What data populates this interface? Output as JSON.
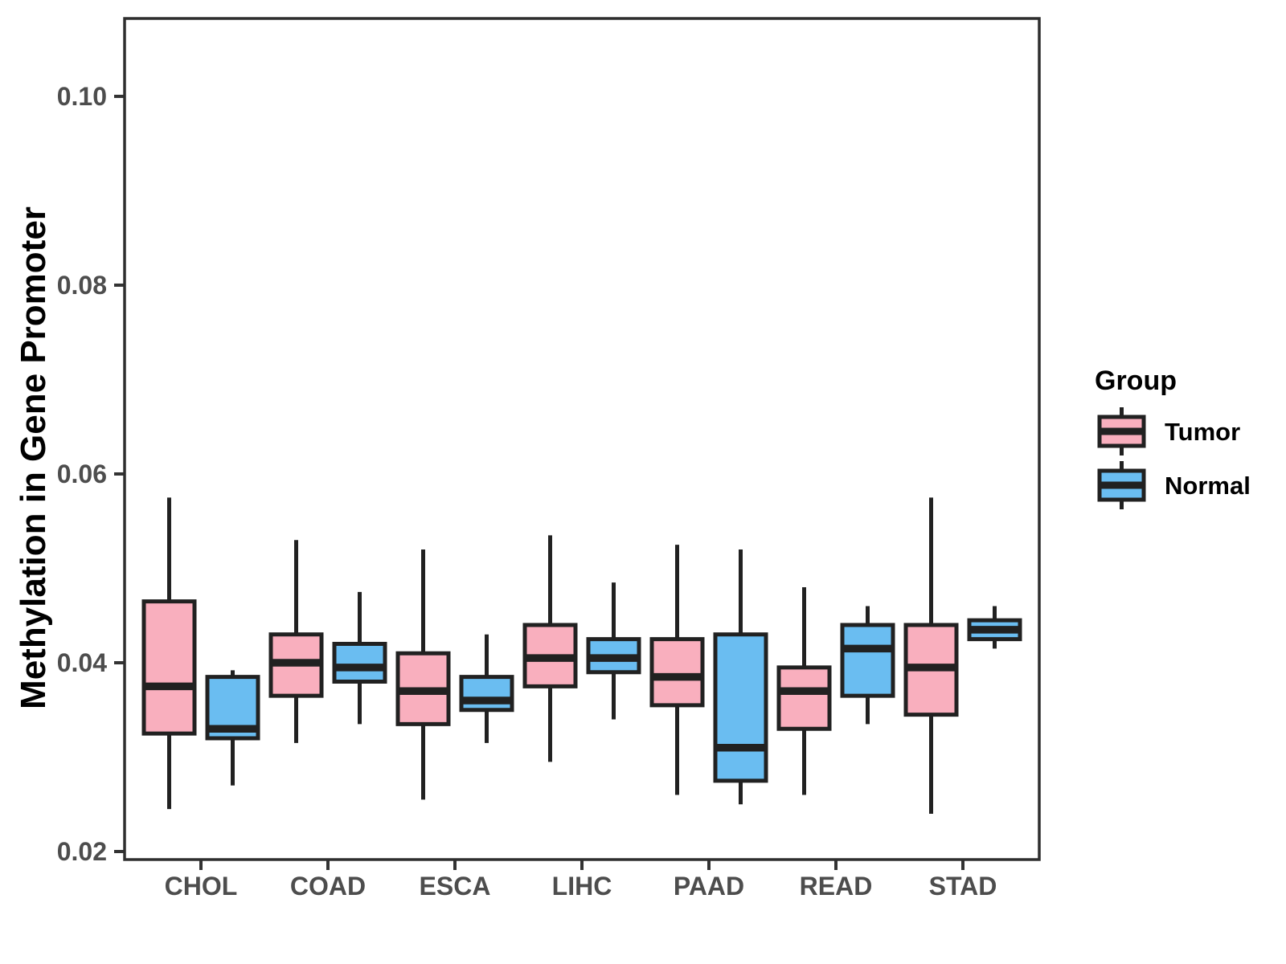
{
  "chart_data": {
    "type": "grouped_boxplot",
    "title": "",
    "xlabel": "",
    "ylabel": "Methylation in Gene Promoter",
    "legend_title": "Group",
    "legend_position": "right",
    "grid": false,
    "categories": [
      "CHOL",
      "COAD",
      "ESCA",
      "LIHC",
      "PAAD",
      "READ",
      "STAD"
    ],
    "groups": [
      {
        "name": "Tumor",
        "color": "#F9AFBE"
      },
      {
        "name": "Normal",
        "color": "#6ABDF1"
      }
    ],
    "y_ticks": [
      {
        "value": 0.02,
        "label": "0.02"
      },
      {
        "value": 0.04,
        "label": "0.04"
      },
      {
        "value": 0.06,
        "label": "0.06"
      },
      {
        "value": 0.08,
        "label": "0.08"
      },
      {
        "value": 0.1,
        "label": "0.10"
      }
    ],
    "y_domain": [
      0.01915,
      0.10825
    ],
    "series": [
      {
        "group": "Tumor",
        "boxes": [
          {
            "category": "CHOL",
            "min": 0.0245,
            "q1": 0.0325,
            "median": 0.0375,
            "q3": 0.0465,
            "max": 0.0575
          },
          {
            "category": "COAD",
            "min": 0.0315,
            "q1": 0.0365,
            "median": 0.04,
            "q3": 0.043,
            "max": 0.053
          },
          {
            "category": "ESCA",
            "min": 0.0255,
            "q1": 0.0335,
            "median": 0.037,
            "q3": 0.041,
            "max": 0.052
          },
          {
            "category": "LIHC",
            "min": 0.0295,
            "q1": 0.0375,
            "median": 0.0405,
            "q3": 0.044,
            "max": 0.0535
          },
          {
            "category": "PAAD",
            "min": 0.026,
            "q1": 0.0355,
            "median": 0.0385,
            "q3": 0.0425,
            "max": 0.0525
          },
          {
            "category": "READ",
            "min": 0.026,
            "q1": 0.033,
            "median": 0.037,
            "q3": 0.0395,
            "max": 0.048
          },
          {
            "category": "STAD",
            "min": 0.024,
            "q1": 0.0345,
            "median": 0.0395,
            "q3": 0.044,
            "max": 0.0575
          }
        ]
      },
      {
        "group": "Normal",
        "boxes": [
          {
            "category": "CHOL",
            "min": 0.027,
            "q1": 0.032,
            "median": 0.033,
            "q3": 0.0385,
            "max": 0.0392
          },
          {
            "category": "COAD",
            "min": 0.0335,
            "q1": 0.038,
            "median": 0.0395,
            "q3": 0.042,
            "max": 0.0475
          },
          {
            "category": "ESCA",
            "min": 0.0315,
            "q1": 0.035,
            "median": 0.036,
            "q3": 0.0385,
            "max": 0.043
          },
          {
            "category": "LIHC",
            "min": 0.034,
            "q1": 0.039,
            "median": 0.0405,
            "q3": 0.0425,
            "max": 0.0485
          },
          {
            "category": "PAAD",
            "min": 0.025,
            "q1": 0.0275,
            "median": 0.031,
            "q3": 0.043,
            "max": 0.052
          },
          {
            "category": "READ",
            "min": 0.0335,
            "q1": 0.0365,
            "median": 0.0415,
            "q3": 0.044,
            "max": 0.046
          },
          {
            "category": "STAD",
            "min": 0.0415,
            "q1": 0.0425,
            "median": 0.0435,
            "q3": 0.0445,
            "max": 0.046
          }
        ]
      }
    ],
    "style": {
      "box_stroke": "#212121",
      "panel_border": "#2e2e2e",
      "tick_color": "#333333",
      "tick_label_color": "#4d4d4d",
      "background": "#ffffff"
    }
  }
}
